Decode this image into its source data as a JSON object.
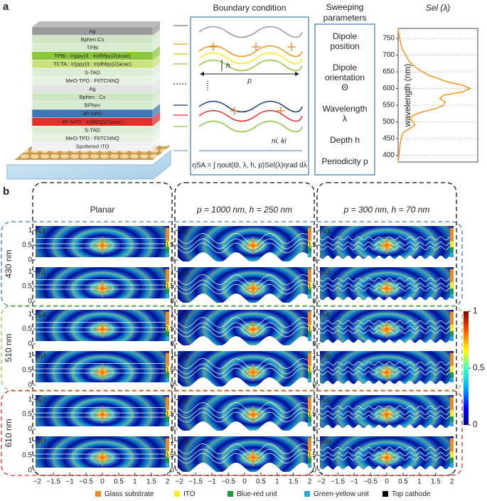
{
  "panel_a": {
    "label": "a",
    "layers": [
      {
        "text": "Ag",
        "color": "#9a9a9a"
      },
      {
        "text": "Bphen:Cs",
        "color": "#cfe6c6"
      },
      {
        "text": "TPBi",
        "color": "#d7ecd0"
      },
      {
        "text": "TPBi : Ir(ppy)3 : Ir(dhfpy)2(acac)",
        "color": "#8cc63f"
      },
      {
        "text": "TCTA : Ir(ppy)3 : Ir(dhfpy)2(acac)",
        "color": "#c9e27a"
      },
      {
        "text": "S-TAD",
        "color": "#dcecd6"
      },
      {
        "text": "MeO-TPD : F6TCNNQ",
        "color": "#e6f1e1"
      },
      {
        "text": "Ag",
        "color": "#e2e2e2"
      },
      {
        "text": "Bphen : Cs",
        "color": "#cfe6c6"
      },
      {
        "text": "BPhen",
        "color": "#d6ebd0"
      },
      {
        "text": "4P-NPD",
        "color": "#3b79b6"
      },
      {
        "text": "4P-NPD : Ir(MDQ)2(acac)",
        "color": "#e5302a"
      },
      {
        "text": "S-TAD",
        "color": "#dcecd6"
      },
      {
        "text": "MeO-TPD : F6TCNNQ",
        "color": "#e6f1e1"
      },
      {
        "text": "Sputtered ITO",
        "color": "#f2f2f2"
      }
    ],
    "boundary": {
      "title": "Boundary condition",
      "h": "h",
      "p": "p",
      "n": "ni, ki",
      "formula": "ηSA = ∫ ηout(Θ, λ, h, p)Sel(λ)ηrad dλ"
    },
    "sweeping": {
      "title": [
        "Sweeping",
        "parameters"
      ],
      "items": [
        [
          "Dipole",
          "position"
        ],
        [
          "Dipole",
          "orientation",
          "Θ"
        ],
        [
          "Wavelength",
          "λ"
        ],
        [
          "Depth h"
        ],
        [
          "Periodicity p"
        ]
      ]
    },
    "spectrum": {
      "type": "line",
      "title": "Sel (λ)",
      "y_label": "wavelength (nm)",
      "color": "#f7941d",
      "wavelength": [
        380,
        400,
        420,
        440,
        460,
        470,
        480,
        490,
        500,
        510,
        520,
        530,
        540,
        550,
        560,
        570,
        580,
        590,
        600,
        610,
        620,
        640,
        660,
        680,
        700,
        720,
        740,
        760,
        780
      ],
      "values": [
        0,
        0.01,
        0.02,
        0.03,
        0.05,
        0.08,
        0.15,
        0.22,
        0.2,
        0.15,
        0.2,
        0.32,
        0.5,
        0.6,
        0.62,
        0.55,
        0.6,
        0.85,
        0.95,
        0.85,
        0.65,
        0.4,
        0.25,
        0.15,
        0.1,
        0.05,
        0.03,
        0.01,
        0
      ],
      "xlim": [
        0,
        1.05
      ],
      "ylim": [
        380,
        780
      ],
      "yticks": [
        400,
        450,
        500,
        550,
        600,
        650,
        700,
        750
      ],
      "grid": true
    }
  },
  "panel_b": {
    "label": "b",
    "columns": [
      "Planar",
      "p = 1000 nm, h = 250 nm",
      "p = 300 nm, h = 70 nm"
    ],
    "rows": [
      {
        "wavelength": "430 nm",
        "color": "#3b79b6",
        "panels": [
          [
            "v1",
            "v2",
            "v3"
          ],
          [
            "h1",
            "h2",
            "h3"
          ]
        ]
      },
      {
        "wavelength": "510 nm",
        "color": "#8cc63f",
        "panels": [
          [
            "v4",
            "v5",
            "v6"
          ],
          [
            "h4",
            "h5",
            "h6"
          ]
        ]
      },
      {
        "wavelength": "610 nm",
        "color": "#e5302a",
        "panels": [
          [
            "v7",
            "v8",
            "v9"
          ],
          [
            "h7",
            "h8",
            "h9"
          ]
        ]
      }
    ],
    "xlim": [
      -2.05,
      2.05
    ],
    "xticks": [
      {
        "value": -2,
        "label": "−2"
      },
      {
        "value": -1.5,
        "label": "−1.5"
      },
      {
        "value": -1,
        "label": "−1"
      },
      {
        "value": -0.5,
        "label": "−0.5"
      },
      0,
      0.5,
      1,
      1.5,
      2
    ],
    "ylim": [
      -0.05,
      1.15
    ],
    "yticks": [
      0,
      0.5,
      1
    ],
    "colorbar": {
      "lim": [
        0,
        1
      ],
      "ticks": [
        0,
        0.5,
        1
      ]
    },
    "legend": [
      {
        "name": "Glass substrate",
        "color": "#f08a24"
      },
      {
        "name": "ITO",
        "color": "#ffe81a"
      },
      {
        "name": "Blue-red unit",
        "color": "#1a9a3c"
      },
      {
        "name": "Green-yellow unit",
        "color": "#29a8e0"
      },
      {
        "name": "Top cathode",
        "color": "#000000"
      }
    ]
  }
}
